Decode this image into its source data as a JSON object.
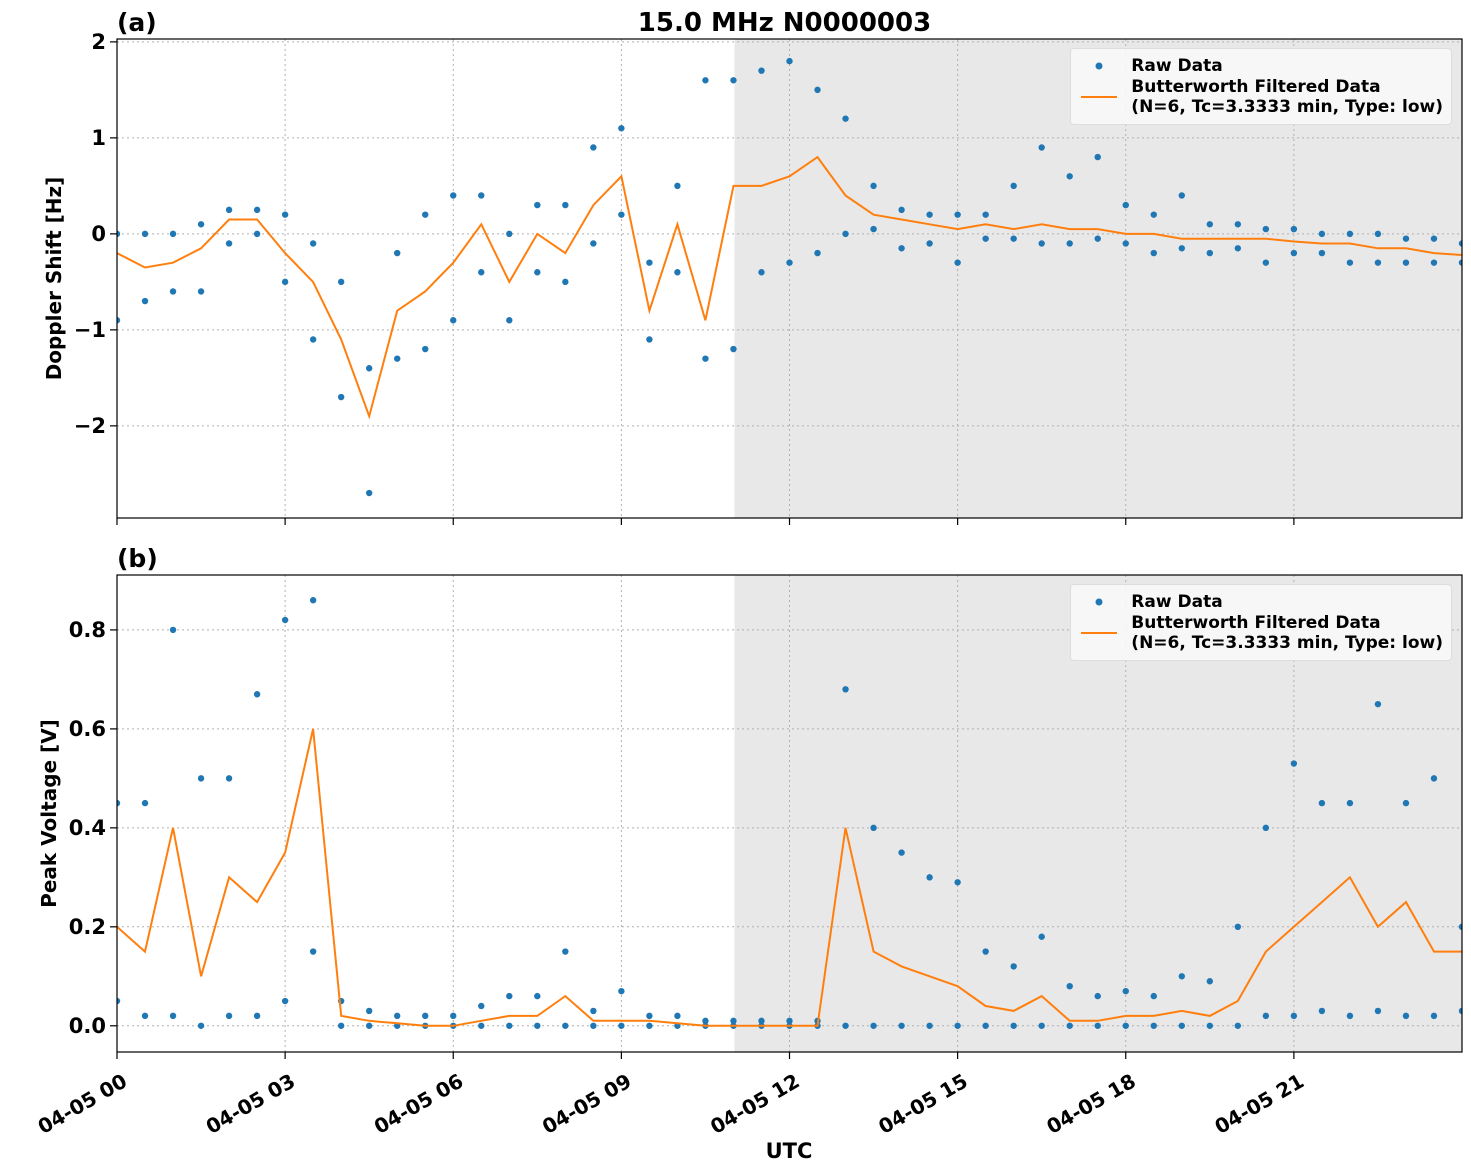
{
  "chart_data": [
    {
      "type": "line",
      "panel_label": "(a)",
      "title": "15.0 MHz N0000003",
      "ylabel": "Doppler Shift [Hz]",
      "xlim": [
        0,
        24
      ],
      "ylim": [
        -2.96,
        2.03
      ],
      "xticks": [
        0,
        3,
        6,
        9,
        12,
        15,
        18,
        21
      ],
      "yticks": [
        {
          "value": -2,
          "label": "−2"
        },
        {
          "value": -1,
          "label": "−1"
        },
        0,
        1,
        2
      ],
      "grid": true,
      "shaded_span": [
        11.02,
        24
      ],
      "legend": "upper right",
      "series": [
        {
          "name": "Raw Data",
          "color": "#1f77b4",
          "mode": "markers",
          "x": [
            0,
            0,
            0.5,
            0.5,
            1,
            1,
            1.5,
            1.5,
            2,
            2,
            2.5,
            2.5,
            3,
            3,
            3.5,
            3.5,
            4,
            4,
            4.5,
            4.5,
            5,
            5,
            5.5,
            5.5,
            6,
            6,
            6.5,
            6.5,
            7,
            7,
            7.5,
            7.5,
            8,
            8,
            8.5,
            8.5,
            9,
            9,
            9.5,
            9.5,
            10,
            10,
            10.5,
            10.5,
            11,
            11,
            11.5,
            11.5,
            12,
            12,
            12.5,
            12.5,
            13,
            13,
            13.5,
            13.5,
            14,
            14,
            14.5,
            14.5,
            15,
            15,
            15.5,
            15.5,
            16,
            16,
            16.5,
            16.5,
            17,
            17,
            17.5,
            17.5,
            18,
            18,
            18.5,
            18.5,
            19,
            19,
            19.5,
            19.5,
            20,
            20,
            20.5,
            20.5,
            21,
            21,
            21.5,
            21.5,
            22,
            22,
            22.5,
            22.5,
            23,
            23,
            23.5,
            23.5,
            24,
            24
          ],
          "values": [
            -0.9,
            0.0,
            -0.7,
            0.0,
            -0.6,
            0.0,
            -0.6,
            0.1,
            -0.1,
            0.25,
            0.0,
            0.25,
            -0.5,
            0.2,
            -1.1,
            -0.1,
            -1.7,
            -0.5,
            -2.7,
            -1.4,
            -1.3,
            -0.2,
            -1.2,
            0.2,
            -0.9,
            0.4,
            -0.4,
            0.4,
            -0.9,
            0.0,
            -0.4,
            0.3,
            -0.5,
            0.3,
            -0.1,
            0.9,
            0.2,
            1.1,
            -1.1,
            -0.3,
            -0.4,
            0.5,
            -1.3,
            1.6,
            -1.2,
            1.6,
            -0.4,
            1.7,
            -0.3,
            1.8,
            -0.2,
            1.5,
            0.0,
            1.2,
            0.05,
            0.5,
            -0.15,
            0.25,
            -0.1,
            0.2,
            -0.3,
            0.2,
            -0.05,
            0.2,
            -0.05,
            0.5,
            -0.1,
            0.9,
            -0.1,
            0.6,
            -0.05,
            0.8,
            -0.1,
            0.3,
            -0.2,
            0.2,
            -0.15,
            0.4,
            -0.2,
            0.1,
            -0.15,
            0.1,
            -0.3,
            0.05,
            -0.2,
            0.05,
            -0.2,
            0.0,
            -0.3,
            0.0,
            -0.3,
            0.0,
            -0.3,
            -0.05,
            -0.3,
            -0.05,
            -0.3,
            -0.1
          ]
        },
        {
          "name": "Butterworth Filtered Data\n(N=6, Tc=3.3333 min, Type: low)",
          "color": "#ff7f0e",
          "mode": "line",
          "x": [
            0,
            0.5,
            1,
            1.5,
            2,
            2.5,
            3,
            3.5,
            4,
            4.5,
            5,
            5.5,
            6,
            6.5,
            7,
            7.5,
            8,
            8.5,
            9,
            9.5,
            10,
            10.5,
            11,
            11.5,
            12,
            12.5,
            13,
            13.5,
            14,
            14.5,
            15,
            15.5,
            16,
            16.5,
            17,
            17.5,
            18,
            18.5,
            19,
            19.5,
            20,
            20.5,
            21,
            21.5,
            22,
            22.5,
            23,
            23.5,
            24
          ],
          "values": [
            -0.2,
            -0.35,
            -0.3,
            -0.15,
            0.15,
            0.15,
            -0.2,
            -0.5,
            -1.1,
            -1.9,
            -0.8,
            -0.6,
            -0.3,
            0.1,
            -0.5,
            0.0,
            -0.2,
            0.3,
            0.6,
            -0.8,
            0.1,
            -0.9,
            0.5,
            0.5,
            0.6,
            0.8,
            0.4,
            0.2,
            0.15,
            0.1,
            0.05,
            0.1,
            0.05,
            0.1,
            0.05,
            0.05,
            0.0,
            0.0,
            -0.05,
            -0.05,
            -0.05,
            -0.05,
            -0.08,
            -0.1,
            -0.1,
            -0.15,
            -0.15,
            -0.2,
            -0.22
          ]
        }
      ]
    },
    {
      "type": "line",
      "panel_label": "(b)",
      "ylabel": "Peak Voltage [V]",
      "xlabel": "UTC",
      "xlim": [
        0,
        24
      ],
      "ylim": [
        -0.053,
        0.911
      ],
      "xticks": [
        {
          "value": 0,
          "label": "04-05 00"
        },
        {
          "value": 3,
          "label": "04-05 03"
        },
        {
          "value": 6,
          "label": "04-05 06"
        },
        {
          "value": 9,
          "label": "04-05 09"
        },
        {
          "value": 12,
          "label": "04-05 12"
        },
        {
          "value": 15,
          "label": "04-05 15"
        },
        {
          "value": 18,
          "label": "04-05 18"
        },
        {
          "value": 21,
          "label": "04-05 21"
        }
      ],
      "yticks": [
        {
          "value": 0,
          "label": "0.0"
        },
        0.2,
        0.4,
        0.6,
        0.8
      ],
      "grid": true,
      "shaded_span": [
        11.02,
        24
      ],
      "legend": "upper right",
      "series": [
        {
          "name": "Raw Data",
          "color": "#1f77b4",
          "mode": "markers",
          "x": [
            0,
            0,
            0.5,
            0.5,
            1,
            1,
            1.5,
            1.5,
            2,
            2,
            2.5,
            2.5,
            3,
            3,
            3.5,
            3.5,
            4,
            4,
            4.5,
            4.5,
            5,
            5,
            5.5,
            5.5,
            6,
            6,
            6.5,
            6.5,
            7,
            7,
            7.5,
            7.5,
            8,
            8,
            8.5,
            8.5,
            9,
            9,
            9.5,
            9.5,
            10,
            10,
            10.5,
            10.5,
            11,
            11,
            11.5,
            11.5,
            12,
            12,
            12.5,
            12.5,
            13,
            13,
            13.5,
            13.5,
            14,
            14,
            14.5,
            14.5,
            15,
            15,
            15.5,
            15.5,
            16,
            16,
            16.5,
            16.5,
            17,
            17,
            17.5,
            17.5,
            18,
            18,
            18.5,
            18.5,
            19,
            19,
            19.5,
            19.5,
            20,
            20,
            20.5,
            20.5,
            21,
            21,
            21.5,
            21.5,
            22,
            22,
            22.5,
            22.5,
            23,
            23,
            23.5,
            23.5,
            24,
            24
          ],
          "values": [
            0.05,
            0.45,
            0.02,
            0.45,
            0.02,
            0.8,
            0.0,
            0.5,
            0.02,
            0.5,
            0.02,
            0.67,
            0.05,
            0.82,
            0.15,
            0.86,
            0.0,
            0.05,
            0.0,
            0.03,
            0.0,
            0.02,
            0.0,
            0.02,
            0.0,
            0.02,
            0.0,
            0.04,
            0.0,
            0.06,
            0.0,
            0.06,
            0.0,
            0.15,
            0.0,
            0.03,
            0.0,
            0.07,
            0.0,
            0.02,
            0.0,
            0.02,
            0.0,
            0.01,
            0.0,
            0.01,
            0.0,
            0.01,
            0.0,
            0.01,
            0.0,
            0.01,
            0.0,
            0.68,
            0.0,
            0.4,
            0.0,
            0.35,
            0.0,
            0.3,
            0.0,
            0.29,
            0.0,
            0.15,
            0.0,
            0.12,
            0.0,
            0.18,
            0.0,
            0.08,
            0.0,
            0.06,
            0.0,
            0.07,
            0.0,
            0.06,
            0.0,
            0.1,
            0.0,
            0.09,
            0.0,
            0.2,
            0.02,
            0.4,
            0.02,
            0.53,
            0.03,
            0.45,
            0.02,
            0.45,
            0.03,
            0.65,
            0.02,
            0.45,
            0.02,
            0.5,
            0.03,
            0.2
          ]
        },
        {
          "name": "Butterworth Filtered Data\n(N=6, Tc=3.3333 min, Type: low)",
          "color": "#ff7f0e",
          "mode": "line",
          "x": [
            0,
            0.5,
            1,
            1.5,
            2,
            2.5,
            3,
            3.5,
            4,
            4.5,
            5,
            5.5,
            6,
            6.5,
            7,
            7.5,
            8,
            8.5,
            9,
            9.5,
            10,
            10.5,
            11,
            11.5,
            12,
            12.5,
            13,
            13.5,
            14,
            14.5,
            15,
            15.5,
            16,
            16.5,
            17,
            17.5,
            18,
            18.5,
            19,
            19.5,
            20,
            20.5,
            21,
            21.5,
            22,
            22.5,
            23,
            23.5,
            24
          ],
          "values": [
            0.2,
            0.15,
            0.4,
            0.1,
            0.3,
            0.25,
            0.35,
            0.6,
            0.02,
            0.01,
            0.005,
            0.0,
            0.0,
            0.01,
            0.02,
            0.02,
            0.06,
            0.01,
            0.01,
            0.01,
            0.005,
            0.0,
            0.0,
            0.0,
            0.0,
            0.0,
            0.4,
            0.15,
            0.12,
            0.1,
            0.08,
            0.04,
            0.03,
            0.06,
            0.01,
            0.01,
            0.02,
            0.02,
            0.03,
            0.02,
            0.05,
            0.15,
            0.2,
            0.25,
            0.3,
            0.2,
            0.25,
            0.15,
            0.15
          ]
        }
      ]
    }
  ]
}
